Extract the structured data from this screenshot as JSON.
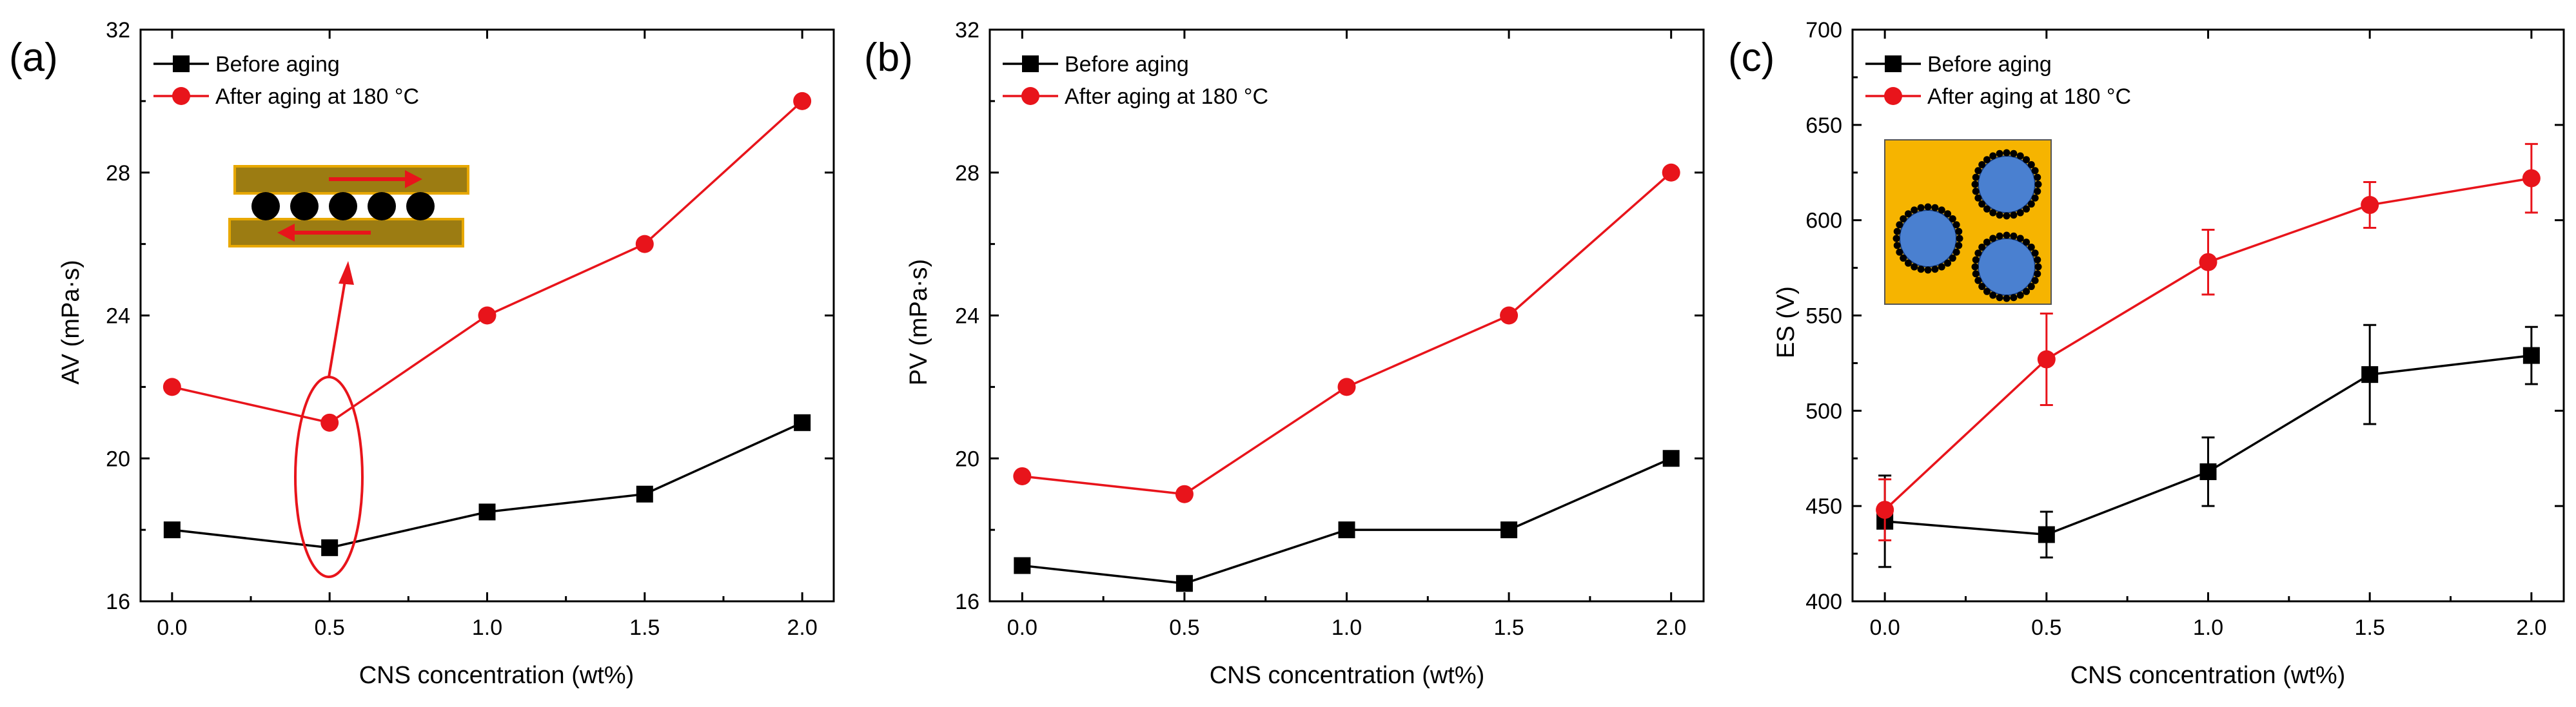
{
  "chart_data": [
    {
      "type": "line",
      "panel_label": "(a)",
      "title": "",
      "xlabel": "CNS concentration (wt%)",
      "ylabel": "AV (mPa·s)",
      "xlim": [
        -0.1,
        2.1
      ],
      "ylim": [
        16,
        32
      ],
      "xticks": [
        "0.0",
        "0.5",
        "1.0",
        "1.5",
        "2.0"
      ],
      "yticks": [
        "16",
        "20",
        "24",
        "28",
        "32"
      ],
      "grid": false,
      "legend": "top-left",
      "x": [
        0.0,
        0.5,
        1.0,
        1.5,
        2.0
      ],
      "series": [
        {
          "name": "Before aging",
          "color": "#000000",
          "marker": "square",
          "values": [
            18,
            17.5,
            18.5,
            19,
            21
          ]
        },
        {
          "name": "After aging at 180 °C",
          "color": "#e8141b",
          "marker": "circle",
          "values": [
            22,
            21,
            24,
            26,
            30
          ]
        }
      ],
      "annotations": [
        "red ellipse around x = 0.5 points with arrow to inset of particles sliding between layers"
      ]
    },
    {
      "type": "line",
      "panel_label": "(b)",
      "title": "",
      "xlabel": "CNS concentration (wt%)",
      "ylabel": "PV (mPa·s)",
      "xlim": [
        -0.1,
        2.1
      ],
      "ylim": [
        16,
        32
      ],
      "xticks": [
        "0.0",
        "0.5",
        "1.0",
        "1.5",
        "2.0"
      ],
      "yticks": [
        "16",
        "20",
        "24",
        "28",
        "32"
      ],
      "grid": false,
      "legend": "top-left",
      "x": [
        0.0,
        0.5,
        1.0,
        1.5,
        2.0
      ],
      "series": [
        {
          "name": "Before aging",
          "color": "#000000",
          "marker": "square",
          "values": [
            17,
            16.5,
            18,
            18,
            20
          ]
        },
        {
          "name": "After aging at 180 °C",
          "color": "#e8141b",
          "marker": "circle",
          "values": [
            19.5,
            19,
            22,
            24,
            28
          ]
        }
      ]
    },
    {
      "type": "line",
      "panel_label": "(c)",
      "title": "",
      "xlabel": "CNS concentration (wt%)",
      "ylabel": "ES (V)",
      "xlim": [
        -0.1,
        2.1
      ],
      "ylim": [
        400,
        700
      ],
      "xticks": [
        "0.0",
        "0.5",
        "1.0",
        "1.5",
        "2.0"
      ],
      "yticks": [
        "400",
        "450",
        "500",
        "550",
        "600",
        "650",
        "700"
      ],
      "grid": false,
      "legend": "top-left",
      "x": [
        0.0,
        0.5,
        1.0,
        1.5,
        2.0
      ],
      "series": [
        {
          "name": "Before aging",
          "color": "#000000",
          "marker": "square",
          "values": [
            442,
            435,
            468,
            519,
            529
          ],
          "errors": [
            24,
            12,
            18,
            26,
            15
          ]
        },
        {
          "name": "After aging at 180 °C",
          "color": "#e8141b",
          "marker": "circle",
          "values": [
            448,
            527,
            578,
            608,
            622
          ],
          "errors": [
            16,
            24,
            17,
            12,
            18
          ]
        }
      ],
      "annotations": [
        "inset: three blue droplets coated with black particles on yellow background"
      ]
    }
  ]
}
